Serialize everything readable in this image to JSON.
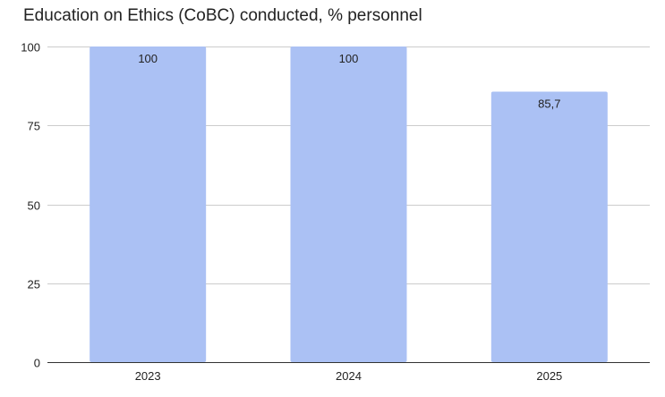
{
  "chart_data": {
    "type": "bar",
    "title": "Education on Ethics (CoBC) conducted, % personnel",
    "categories": [
      "2023",
      "2024",
      "2025"
    ],
    "values": [
      100,
      100,
      85.7
    ],
    "data_labels": [
      "100",
      "100",
      "85,7"
    ],
    "ylim": [
      0,
      100
    ],
    "yticks": [
      0,
      25,
      50,
      75,
      100
    ],
    "xlabel": "",
    "ylabel": "",
    "grid": true,
    "legend": "none",
    "colors": {
      "bar": "#abc1f4",
      "grid": "#cccccc",
      "axis": "#333333",
      "text": "#222222"
    }
  }
}
